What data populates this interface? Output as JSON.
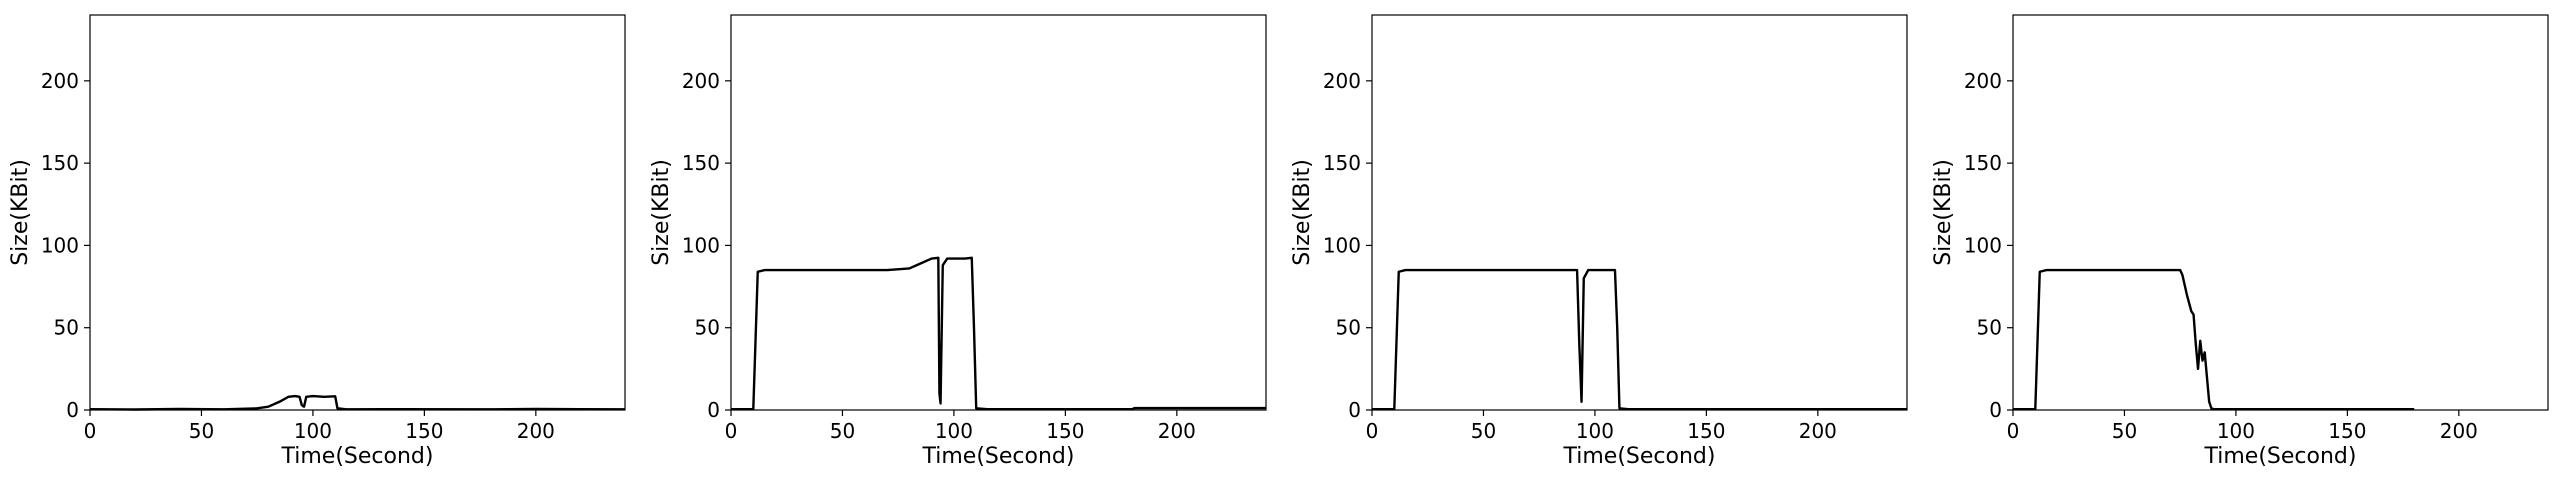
{
  "chart_data": [
    {
      "type": "line",
      "xlabel": "Time(Second)",
      "ylabel": "Size(KBit)",
      "xlim": [
        0,
        240
      ],
      "ylim": [
        0,
        240
      ],
      "xticks": [
        0,
        50,
        100,
        150,
        200
      ],
      "yticks": [
        0,
        50,
        100,
        150,
        200
      ],
      "grid": false,
      "series": [
        {
          "color": "#000000",
          "points": [
            [
              0,
              0.5
            ],
            [
              20,
              0.3
            ],
            [
              40,
              0.6
            ],
            [
              60,
              0.4
            ],
            [
              75,
              1
            ],
            [
              80,
              2
            ],
            [
              85,
              5
            ],
            [
              89,
              8
            ],
            [
              92,
              8.5
            ],
            [
              94,
              8
            ],
            [
              95,
              3
            ],
            [
              96,
              2
            ],
            [
              97,
              8
            ],
            [
              100,
              8.5
            ],
            [
              105,
              8
            ],
            [
              110,
              8.3
            ],
            [
              111,
              1
            ],
            [
              115,
              0.4
            ],
            [
              140,
              0.5
            ],
            [
              180,
              0.4
            ],
            [
              200,
              0.6
            ],
            [
              220,
              0.5
            ],
            [
              240,
              0.4
            ]
          ]
        }
      ]
    },
    {
      "type": "line",
      "xlabel": "Time(Second)",
      "ylabel": "Size(KBit)",
      "xlim": [
        0,
        240
      ],
      "ylim": [
        0,
        240
      ],
      "xticks": [
        0,
        50,
        100,
        150,
        200
      ],
      "yticks": [
        0,
        50,
        100,
        150,
        200
      ],
      "grid": false,
      "series": [
        {
          "color": "#000000",
          "points": [
            [
              0,
              0.5
            ],
            [
              10,
              0.5
            ],
            [
              12,
              84
            ],
            [
              15,
              85
            ],
            [
              30,
              85
            ],
            [
              50,
              85
            ],
            [
              70,
              85
            ],
            [
              80,
              86
            ],
            [
              85,
              89
            ],
            [
              90,
              92
            ],
            [
              93,
              92.5
            ],
            [
              93.5,
              10
            ],
            [
              94,
              4
            ],
            [
              95,
              88
            ],
            [
              97,
              92
            ],
            [
              105,
              92
            ],
            [
              108,
              92.5
            ],
            [
              109,
              50
            ],
            [
              110,
              1
            ],
            [
              115,
              0.5
            ],
            [
              150,
              0.5
            ],
            [
              180,
              0.5
            ],
            [
              181,
              1.2
            ],
            [
              220,
              1.2
            ],
            [
              240,
              1.2
            ]
          ]
        }
      ]
    },
    {
      "type": "line",
      "xlabel": "Time(Second)",
      "ylabel": "Size(KBit)",
      "xlim": [
        0,
        240
      ],
      "ylim": [
        0,
        240
      ],
      "xticks": [
        0,
        50,
        100,
        150,
        200
      ],
      "yticks": [
        0,
        50,
        100,
        150,
        200
      ],
      "grid": false,
      "series": [
        {
          "color": "#000000",
          "points": [
            [
              0,
              0.5
            ],
            [
              10,
              0.5
            ],
            [
              12,
              84
            ],
            [
              15,
              85
            ],
            [
              30,
              85
            ],
            [
              50,
              85
            ],
            [
              70,
              85
            ],
            [
              92,
              85
            ],
            [
              93,
              40
            ],
            [
              94,
              5
            ],
            [
              95,
              80
            ],
            [
              97,
              85
            ],
            [
              105,
              85
            ],
            [
              109,
              85
            ],
            [
              110,
              50
            ],
            [
              111,
              1
            ],
            [
              115,
              0.5
            ],
            [
              150,
              0.5
            ],
            [
              200,
              0.5
            ],
            [
              240,
              0.5
            ]
          ]
        }
      ]
    },
    {
      "type": "line",
      "xlabel": "Time(Second)",
      "ylabel": "Size(KBit)",
      "xlim": [
        0,
        240
      ],
      "ylim": [
        0,
        240
      ],
      "xticks": [
        0,
        50,
        100,
        150,
        200
      ],
      "yticks": [
        0,
        50,
        100,
        150,
        200
      ],
      "grid": false,
      "series": [
        {
          "color": "#000000",
          "points": [
            [
              0,
              0.5
            ],
            [
              10,
              0.5
            ],
            [
              12,
              84
            ],
            [
              15,
              85
            ],
            [
              30,
              85
            ],
            [
              50,
              85
            ],
            [
              70,
              85
            ],
            [
              75,
              85
            ],
            [
              76,
              82
            ],
            [
              78,
              70
            ],
            [
              80,
              60
            ],
            [
              81,
              58
            ],
            [
              82,
              40
            ],
            [
              83,
              25
            ],
            [
              84,
              42
            ],
            [
              85,
              30
            ],
            [
              86,
              35
            ],
            [
              87,
              20
            ],
            [
              88,
              5
            ],
            [
              89,
              1
            ],
            [
              90,
              0.5
            ],
            [
              120,
              0.5
            ],
            [
              150,
              0.5
            ],
            [
              180,
              0.5
            ]
          ]
        }
      ]
    }
  ]
}
